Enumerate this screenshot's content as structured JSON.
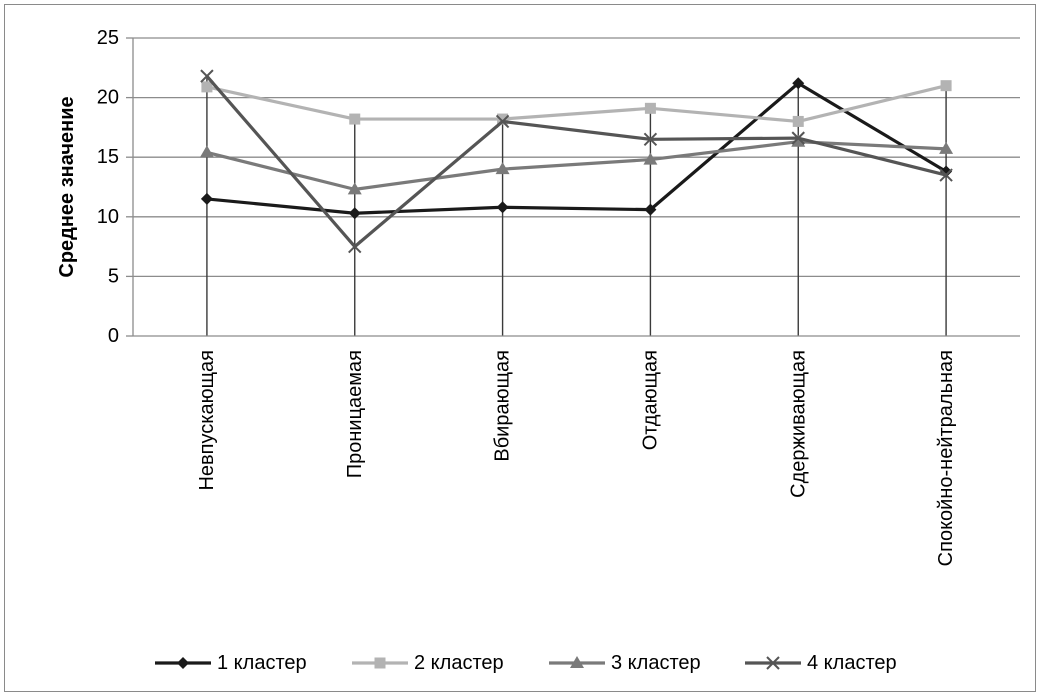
{
  "chart_data": {
    "type": "line",
    "title": "",
    "xlabel": "",
    "ylabel": "Среднее значение",
    "ylim": [
      0,
      25
    ],
    "yticks": [
      0,
      5,
      10,
      15,
      20,
      25
    ],
    "grid": true,
    "legend_position": "bottom",
    "categories": [
      "Невпускающая",
      "Проницаемая",
      "Вбирающая",
      "Отдающая",
      "Сдерживающая",
      "Спокойно-нейтральная"
    ],
    "series": [
      {
        "name": "1 кластер",
        "values": [
          11.5,
          10.3,
          10.8,
          10.6,
          21.2,
          13.8
        ],
        "color": "#1a1a1a",
        "marker": "diamond"
      },
      {
        "name": "2 кластер",
        "values": [
          20.9,
          18.2,
          18.2,
          19.1,
          18.0,
          21.0
        ],
        "color": "#b3b3b3",
        "marker": "square"
      },
      {
        "name": "3 кластер",
        "values": [
          15.4,
          12.3,
          14.0,
          14.8,
          16.3,
          15.7
        ],
        "color": "#7a7a7a",
        "marker": "triangle"
      },
      {
        "name": "4 кластер",
        "values": [
          21.8,
          7.5,
          18.0,
          16.5,
          16.6,
          13.5
        ],
        "color": "#555555",
        "marker": "x"
      }
    ]
  }
}
